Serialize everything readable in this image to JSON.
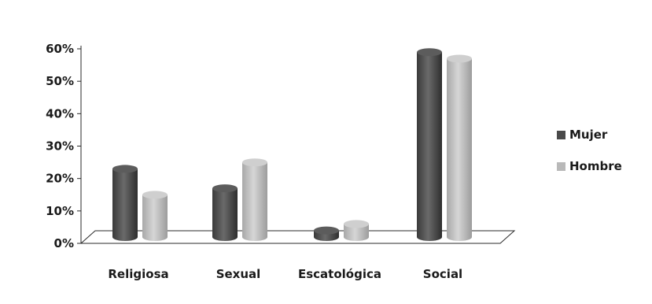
{
  "chart_data": {
    "type": "bar",
    "categories": [
      "Religiosa",
      "Sexual",
      "Escatológica",
      "Social"
    ],
    "series": [
      {
        "name": "Mujer",
        "values": [
          22,
          16,
          3,
          58
        ],
        "color": "#4a4a4a"
      },
      {
        "name": "Hombre",
        "values": [
          14,
          24,
          5,
          56
        ],
        "color": "#b9b9b9"
      }
    ],
    "ylim": [
      0,
      60
    ],
    "yticks": [
      "0%",
      "10%",
      "20%",
      "30%",
      "40%",
      "50%",
      "60%"
    ],
    "title": "",
    "xlabel": "",
    "ylabel": "",
    "legend_position": "right",
    "grid": false
  }
}
